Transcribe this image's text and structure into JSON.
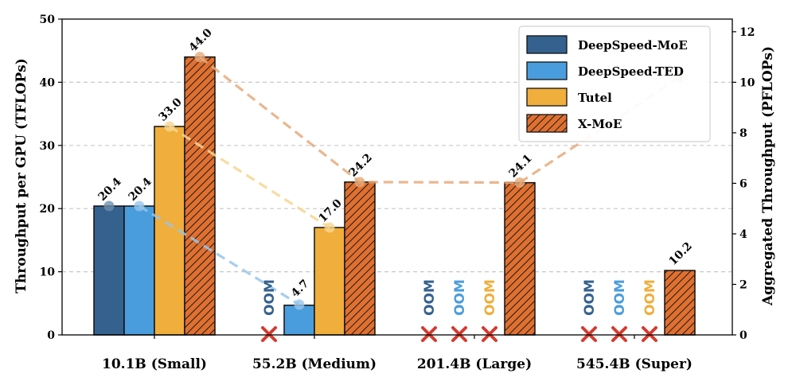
{
  "chart_data": {
    "type": "bar",
    "categories": [
      "10.1B (Small)",
      "55.2B (Medium)",
      "201.4B (Large)",
      "545.4B (Super)"
    ],
    "ylabel": "Throughput per GPU (TFLOPs)",
    "y2label": "Aggregated Throughput (PFLOPs)",
    "ylim": [
      0,
      50
    ],
    "y2lim": [
      0,
      12.5
    ],
    "yticks": [
      0,
      10,
      20,
      30,
      40,
      50
    ],
    "y2ticks": [
      0,
      2,
      4,
      6,
      8,
      10,
      12
    ],
    "grid": "horizontal dashed",
    "legend_position": "top-right",
    "oom_label": "OOM",
    "series": [
      {
        "name": "DeepSpeed-MoE",
        "color": "#34618e",
        "hatch": false,
        "values": [
          20.4,
          null,
          null,
          null
        ],
        "labels": [
          "20.4",
          null,
          null,
          null
        ],
        "oom": [
          false,
          true,
          true,
          true
        ],
        "line_color": "#6e8fae",
        "aggregated": [
          5.1,
          null,
          null,
          null
        ]
      },
      {
        "name": "DeepSpeed-TED",
        "color": "#4a9ddc",
        "hatch": false,
        "values": [
          20.4,
          4.7,
          null,
          null
        ],
        "labels": [
          "20.4",
          "4.7",
          null,
          null
        ],
        "oom": [
          false,
          false,
          true,
          true
        ],
        "line_color": "#97c6ea",
        "aggregated": [
          5.1,
          1.2,
          null,
          null
        ]
      },
      {
        "name": "Tutel",
        "color": "#f0ae3c",
        "hatch": false,
        "values": [
          33.0,
          17.0,
          null,
          null
        ],
        "labels": [
          "33.0",
          "17.0",
          null,
          null
        ],
        "oom": [
          false,
          false,
          true,
          true
        ],
        "line_color": "#f6d690",
        "aggregated": [
          8.25,
          4.25,
          null,
          null
        ]
      },
      {
        "name": "X-MoE",
        "color": "#e07030",
        "hatch": true,
        "values": [
          44.0,
          24.2,
          24.1,
          10.2
        ],
        "labels": [
          "44.0",
          "24.2",
          "24.1",
          "10.2"
        ],
        "oom": [
          false,
          false,
          false,
          false
        ],
        "line_color": "#e6aa7a",
        "aggregated": [
          11.0,
          6.05,
          6.03,
          10.2
        ]
      }
    ]
  }
}
